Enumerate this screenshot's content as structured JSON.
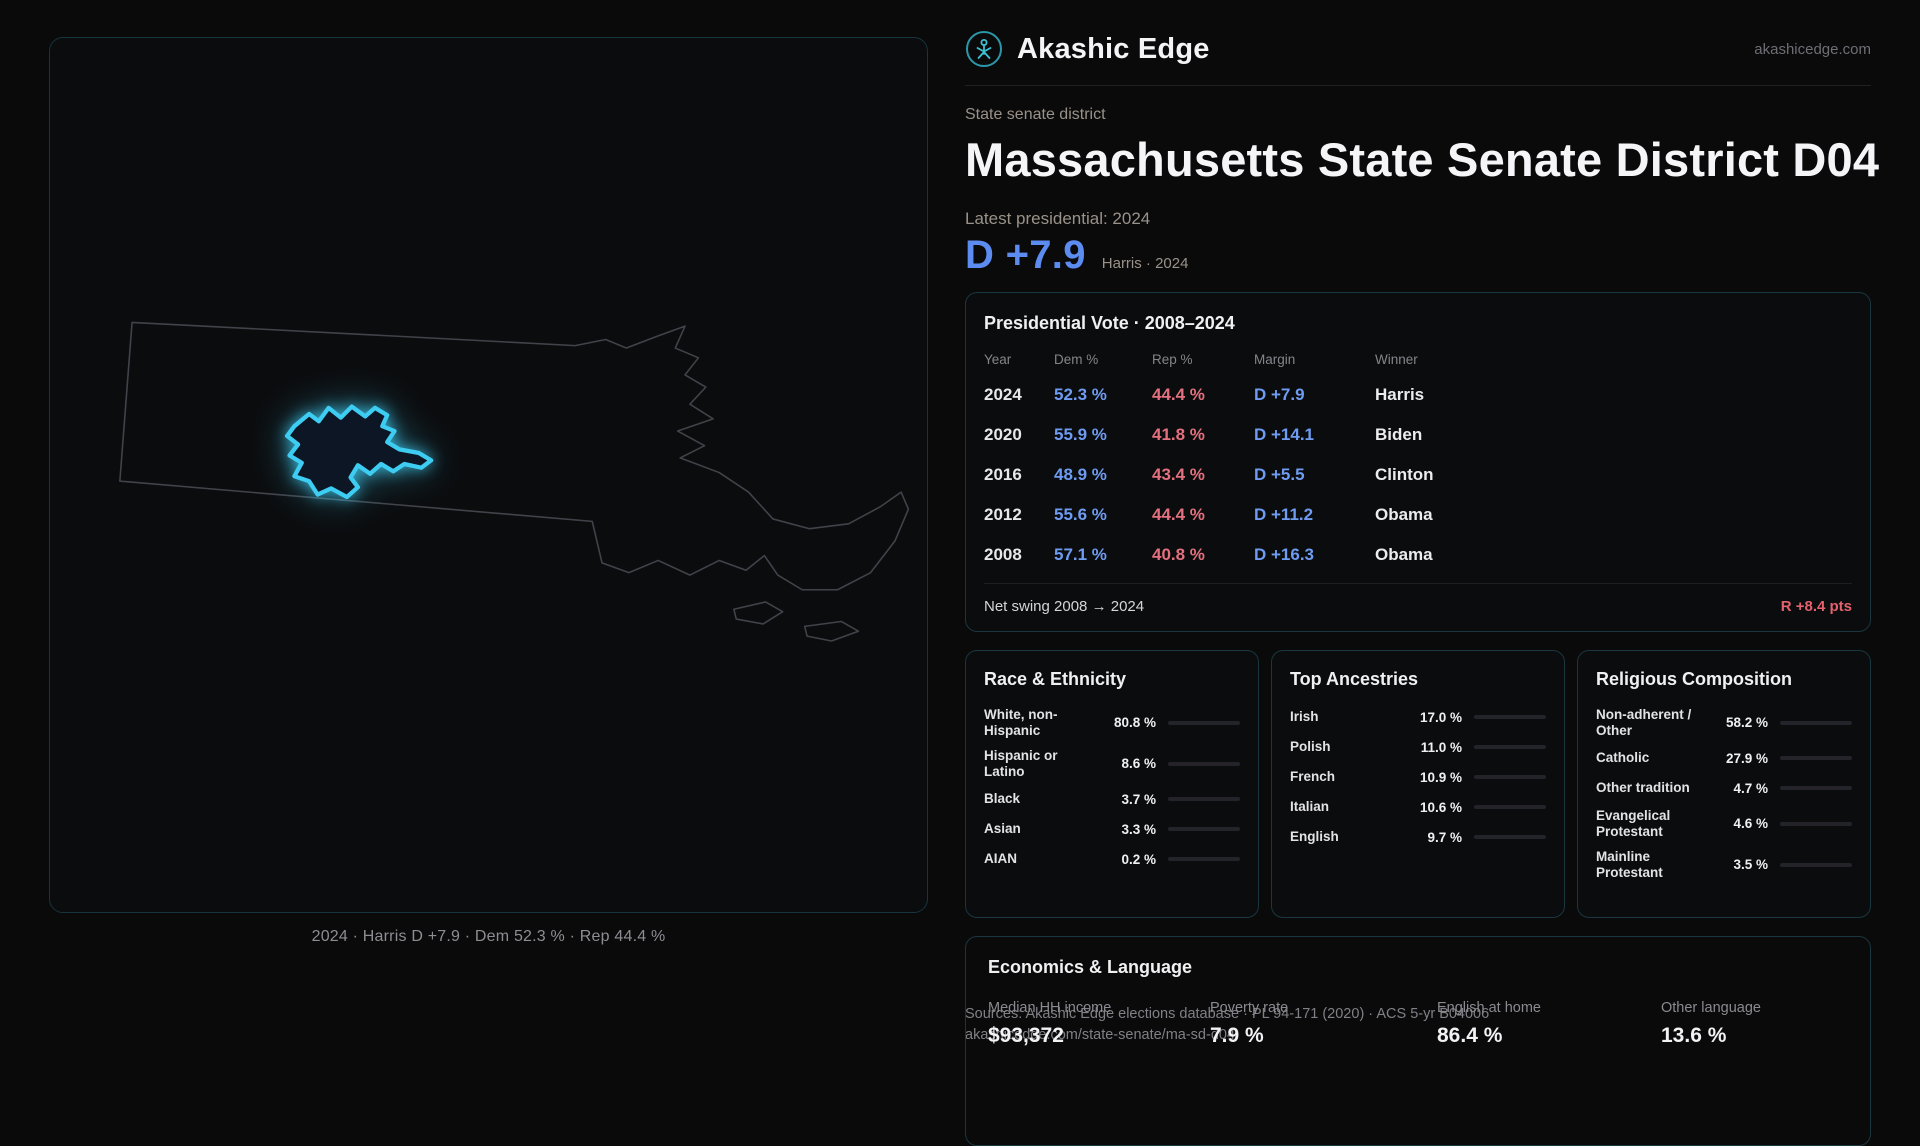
{
  "brand": {
    "name": "Akashic Edge",
    "domain": "akashicedge.com"
  },
  "map": {
    "caption": "2024 · Harris D +7.9 · Dem 52.3 % · Rep 44.4 %"
  },
  "page": {
    "kicker": "State senate district",
    "title": "Massachusetts State Senate District D04",
    "latest_label": "Latest presidential: 2024",
    "headline_margin": "D +7.9",
    "headline_sub": "Harris · 2024"
  },
  "presidential": {
    "title": "Presidential Vote · 2008–2024",
    "columns": [
      "Year",
      "Dem %",
      "Rep %",
      "Margin",
      "Winner"
    ],
    "rows": [
      {
        "year": "2024",
        "dem": "52.3 %",
        "rep": "44.4 %",
        "margin": "D +7.9",
        "winner": "Harris"
      },
      {
        "year": "2020",
        "dem": "55.9 %",
        "rep": "41.8 %",
        "margin": "D +14.1",
        "winner": "Biden"
      },
      {
        "year": "2016",
        "dem": "48.9 %",
        "rep": "43.4 %",
        "margin": "D +5.5",
        "winner": "Clinton"
      },
      {
        "year": "2012",
        "dem": "55.6 %",
        "rep": "44.4 %",
        "margin": "D +11.2",
        "winner": "Obama"
      },
      {
        "year": "2008",
        "dem": "57.1 %",
        "rep": "40.8 %",
        "margin": "D +16.3",
        "winner": "Obama"
      }
    ],
    "net_swing_label": "Net swing 2008 → 2024",
    "net_swing_value": "R +8.4 pts"
  },
  "demographics": {
    "race": {
      "title": "Race & Ethnicity",
      "rows": [
        {
          "label": "White, non-Hispanic",
          "value": "80.8 %",
          "pct": 80.8,
          "color": "#c9ced8"
        },
        {
          "label": "Hispanic or Latino",
          "value": "8.6 %",
          "pct": 8.6,
          "color": "#e09a3e"
        },
        {
          "label": "Black",
          "value": "3.7 %",
          "pct": 3.7,
          "color": "#6a63e8"
        },
        {
          "label": "Asian",
          "value": "3.3 %",
          "pct": 3.3,
          "color": "#36c98c"
        },
        {
          "label": "AIAN",
          "value": "0.2 %",
          "pct": 0.2,
          "color": "#8a93a6"
        }
      ]
    },
    "ancestries": {
      "title": "Top Ancestries",
      "rows": [
        {
          "label": "Irish",
          "value": "17.0 %",
          "pct": 17.0,
          "color": "#96a0b0"
        },
        {
          "label": "Polish",
          "value": "11.0 %",
          "pct": 11.0,
          "color": "#96a0b0"
        },
        {
          "label": "French",
          "value": "10.9 %",
          "pct": 10.9,
          "color": "#96a0b0"
        },
        {
          "label": "Italian",
          "value": "10.6 %",
          "pct": 10.6,
          "color": "#96a0b0"
        },
        {
          "label": "English",
          "value": "9.7 %",
          "pct": 9.7,
          "color": "#96a0b0"
        }
      ]
    },
    "religion": {
      "title": "Religious Composition",
      "rows": [
        {
          "label": "Non-adherent / Other",
          "value": "58.2 %",
          "pct": 58.2,
          "color": "#c9ced8"
        },
        {
          "label": "Catholic",
          "value": "27.9 %",
          "pct": 27.9,
          "color": "#dfaf3e"
        },
        {
          "label": "Other tradition",
          "value": "4.7 %",
          "pct": 4.7,
          "color": "#9aa3b1"
        },
        {
          "label": "Evangelical Protestant",
          "value": "4.6 %",
          "pct": 4.6,
          "color": "#d95968"
        },
        {
          "label": "Mainline Protestant",
          "value": "3.5 %",
          "pct": 3.5,
          "color": "#5d8cf1"
        }
      ]
    }
  },
  "economics": {
    "title": "Economics & Language",
    "stats": [
      {
        "label": "Median HH income",
        "value": "$93,372"
      },
      {
        "label": "Poverty rate",
        "value": "7.9 %"
      },
      {
        "label": "English at home",
        "value": "86.4 %"
      },
      {
        "label": "Other language",
        "value": "13.6 %"
      }
    ]
  },
  "footer": {
    "line1": "Sources: Akashic Edge elections database · PL 94-171 (2020) · ACS 5-yr B04006",
    "line2": "akashicedge.com/state-senate/ma-sd-d04"
  },
  "colors": {
    "accent_dem": "#5d8cf1",
    "accent_rep": "#e4717f",
    "district_glow": "#3ecdf2"
  }
}
